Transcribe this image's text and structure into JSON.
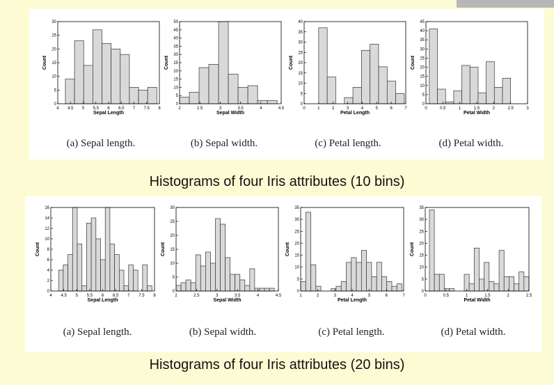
{
  "titles": {
    "top": "Histograms of four Iris attributes (10 bins)",
    "bottom": "Histograms of four Iris attributes (20 bins)"
  },
  "colors": {
    "bar_fill": "#d9d9d9",
    "bar_stroke": "#333333",
    "panel": "#ffffff",
    "background": "#fdfbd4"
  },
  "chart_data": [
    {
      "type": "bar",
      "group": "10 bins",
      "caption": "(a) Sepal length.",
      "xlabel": "Sepal Length",
      "ylabel": "Count",
      "xlim": [
        4,
        8
      ],
      "ylim": [
        0,
        30
      ],
      "xticks": [
        "4",
        "4.5",
        "5",
        "5.5",
        "6",
        "6.5",
        "7",
        "7.5",
        "8"
      ],
      "yticks": [
        "0",
        "5",
        "10",
        "15",
        "20",
        "25",
        "30"
      ],
      "bin_start": 4.3,
      "bin_width": 0.36,
      "values": [
        9,
        23,
        14,
        27,
        22,
        20,
        18,
        6,
        5,
        6
      ]
    },
    {
      "type": "bar",
      "group": "10 bins",
      "caption": "(b) Sepal width.",
      "xlabel": "Sepal Width",
      "ylabel": "Count",
      "xlim": [
        2,
        4.5
      ],
      "ylim": [
        0,
        50
      ],
      "xticks": [
        "2",
        "2.5",
        "3",
        "3.5",
        "4",
        "4.5"
      ],
      "yticks": [
        "0",
        "5",
        "10",
        "15",
        "20",
        "25",
        "30",
        "35",
        "40",
        "45",
        "50"
      ],
      "bin_start": 2.0,
      "bin_width": 0.24,
      "values": [
        4,
        7,
        22,
        24,
        50,
        18,
        10,
        11,
        2,
        2
      ]
    },
    {
      "type": "bar",
      "group": "10 bins",
      "caption": "(c) Petal length.",
      "xlabel": "Petal Length",
      "ylabel": "Count",
      "xlim": [
        0,
        7
      ],
      "ylim": [
        0,
        40
      ],
      "xticks": [
        "0",
        "1",
        "2",
        "3",
        "4",
        "5",
        "6",
        "7"
      ],
      "yticks": [
        "0",
        "5",
        "10",
        "15",
        "20",
        "25",
        "30",
        "35",
        "40"
      ],
      "bin_start": 1.0,
      "bin_width": 0.59,
      "values": [
        37,
        13,
        0,
        3,
        8,
        26,
        29,
        18,
        11,
        5
      ]
    },
    {
      "type": "bar",
      "group": "10 bins",
      "caption": "(d) Petal width.",
      "xlabel": "Petal Width",
      "ylabel": "Count",
      "xlim": [
        0,
        3
      ],
      "ylim": [
        0,
        45
      ],
      "xticks": [
        "0",
        "0.5",
        "1",
        "1.5",
        "2",
        "2.5",
        "3"
      ],
      "yticks": [
        "0",
        "5",
        "10",
        "15",
        "20",
        "25",
        "30",
        "35",
        "40",
        "45"
      ],
      "bin_start": 0.1,
      "bin_width": 0.24,
      "values": [
        41,
        8,
        1,
        7,
        21,
        20,
        6,
        23,
        9,
        14
      ]
    },
    {
      "type": "bar",
      "group": "20 bins",
      "caption": "(a) Sepal length.",
      "xlabel": "Sepal Length",
      "ylabel": "Count",
      "xlim": [
        4,
        8
      ],
      "ylim": [
        0,
        16
      ],
      "xticks": [
        "4",
        "4.5",
        "5",
        "5.5",
        "6",
        "6.5",
        "7",
        "7.5",
        "8"
      ],
      "yticks": [
        "0",
        "2",
        "4",
        "6",
        "8",
        "10",
        "12",
        "14",
        "16"
      ],
      "bin_start": 4.3,
      "bin_width": 0.18,
      "values": [
        4,
        5,
        7,
        16,
        9,
        1,
        13,
        14,
        10,
        6,
        16,
        9,
        7,
        4,
        1,
        5,
        4,
        0,
        5,
        1
      ]
    },
    {
      "type": "bar",
      "group": "20 bins",
      "caption": "(b) Sepal width.",
      "xlabel": "Sepal Width",
      "ylabel": "Count",
      "xlim": [
        2,
        4.5
      ],
      "ylim": [
        0,
        30
      ],
      "xticks": [
        "2",
        "2.5",
        "3",
        "3.5",
        "4",
        "4.5"
      ],
      "yticks": [
        "0",
        "5",
        "10",
        "15",
        "20",
        "25",
        "30"
      ],
      "bin_start": 2.0,
      "bin_width": 0.12,
      "values": [
        2,
        3,
        4,
        3,
        13,
        9,
        14,
        10,
        26,
        24,
        12,
        6,
        6,
        4,
        2,
        8,
        1,
        1,
        1,
        1
      ]
    },
    {
      "type": "bar",
      "group": "20 bins",
      "caption": "(c) Petal length.",
      "xlabel": "Petal Length",
      "ylabel": "Count",
      "xlim": [
        1,
        7
      ],
      "ylim": [
        0,
        35
      ],
      "xticks": [
        "1",
        "2",
        "3",
        "4",
        "5",
        "6",
        "7"
      ],
      "yticks": [
        "0",
        "5",
        "10",
        "15",
        "20",
        "25",
        "30",
        "35"
      ],
      "bin_start": 1.0,
      "bin_width": 0.295,
      "values": [
        4,
        33,
        11,
        2,
        0,
        0,
        1,
        2,
        4,
        12,
        14,
        12,
        17,
        12,
        6,
        12,
        6,
        4,
        2,
        3
      ]
    },
    {
      "type": "bar",
      "group": "20 bins",
      "caption": "(d) Petal width.",
      "xlabel": "Petal Width",
      "ylabel": "Count",
      "xlim": [
        0,
        2.5
      ],
      "ylim": [
        0,
        35
      ],
      "xticks": [
        "0",
        "0.5",
        "1",
        "1.5",
        "2",
        "2.5"
      ],
      "yticks": [
        "0",
        "5",
        "10",
        "15",
        "20",
        "25",
        "30",
        "35"
      ],
      "bin_start": 0.1,
      "bin_width": 0.12,
      "values": [
        34,
        7,
        7,
        1,
        1,
        0,
        0,
        7,
        3,
        18,
        5,
        12,
        4,
        3,
        17,
        6,
        6,
        3,
        8,
        6
      ]
    }
  ]
}
